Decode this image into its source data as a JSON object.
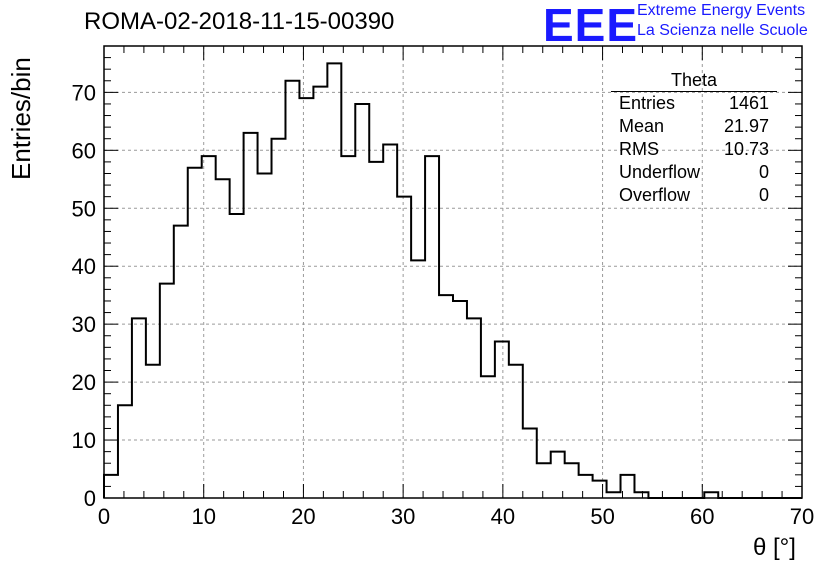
{
  "title": "ROMA-02-2018-11-15-00390",
  "logo": {
    "mark": "EEE",
    "line1": "Extreme Energy Events",
    "line2": "La Scienza nelle Scuole",
    "color": "#1a1aff"
  },
  "stats_box": {
    "title": "Theta",
    "rows": [
      {
        "label": "Entries",
        "value": "1461"
      },
      {
        "label": "Mean",
        "value": "21.97"
      },
      {
        "label": "RMS",
        "value": "10.73"
      },
      {
        "label": "Underflow",
        "value": "0"
      },
      {
        "label": "Overflow",
        "value": "0"
      }
    ]
  },
  "chart_data": {
    "type": "bar",
    "title": "ROMA-02-2018-11-15-00390",
    "xlabel": "θ [°]",
    "ylabel": "Entries/bin",
    "xlim": [
      0,
      70
    ],
    "ylim": [
      0,
      78
    ],
    "bin_width": 1.4,
    "x_ticks": [
      0,
      10,
      20,
      30,
      40,
      50,
      60,
      70
    ],
    "y_ticks": [
      0,
      10,
      20,
      30,
      40,
      50,
      60,
      70
    ],
    "grid": true,
    "values": [
      4,
      16,
      31,
      23,
      37,
      47,
      57,
      59,
      55,
      49,
      63,
      56,
      62,
      72,
      69,
      71,
      75,
      59,
      68,
      58,
      61,
      52,
      41,
      59,
      35,
      34,
      31,
      21,
      27,
      23,
      12,
      6,
      8,
      6,
      4,
      3,
      1,
      4,
      1,
      0,
      0,
      0,
      0,
      1,
      0,
      0,
      0,
      0,
      0,
      0
    ],
    "color": "#000000"
  }
}
